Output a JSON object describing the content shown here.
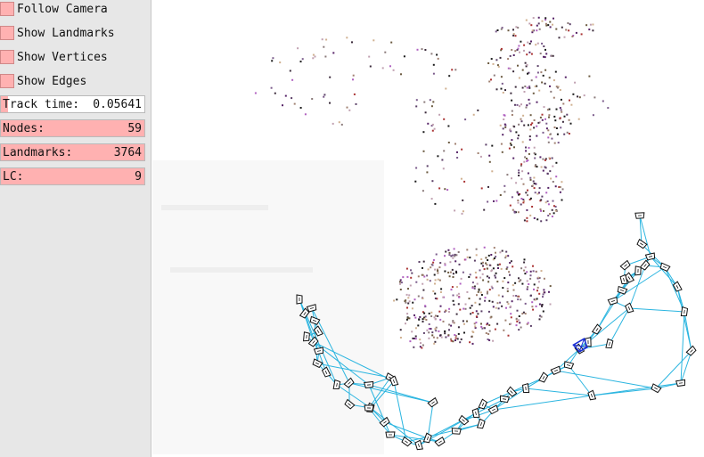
{
  "panel": {
    "checkboxes": [
      {
        "label": "Follow Camera"
      },
      {
        "label": "Show Landmarks"
      },
      {
        "label": "Show Vertices"
      },
      {
        "label": "Show Edges"
      }
    ],
    "track_time": {
      "label": "Track time:",
      "value": "0.05641"
    },
    "nodes": {
      "label": "Nodes:",
      "value": "59"
    },
    "landmarks": {
      "label": "Landmarks:",
      "value": "3764"
    },
    "lc": {
      "label": "LC:",
      "value": "9"
    }
  },
  "colors": {
    "panel_bg": "#e7e7e7",
    "checkbox_fill": "#ffb1b1",
    "edge_color": "#2bb5e0",
    "current_camera": "#1a2fd6",
    "keyframe_outline": "#111111"
  },
  "scene": {
    "keyframes_visible": 59,
    "loop_closures_visible": 9
  }
}
